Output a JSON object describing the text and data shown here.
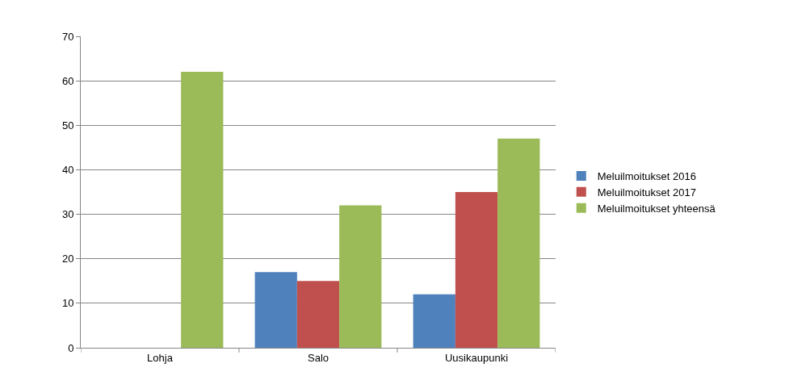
{
  "chart_data": {
    "type": "bar",
    "categories": [
      "Lohja",
      "Salo",
      "Uusikaupunki"
    ],
    "series": [
      {
        "name": "Meluilmoitukset 2016",
        "color": "#4f81bd",
        "values": [
          null,
          17,
          12
        ]
      },
      {
        "name": "Meluilmoitukset 2017",
        "color": "#c0504d",
        "values": [
          null,
          15,
          35
        ]
      },
      {
        "name": "Meluilmoitukset yhteensä",
        "color": "#9bbb59",
        "values": [
          62,
          32,
          47
        ]
      }
    ],
    "ylim": [
      0,
      70
    ],
    "yticks": [
      0,
      10,
      20,
      30,
      40,
      50,
      60,
      70
    ],
    "grid": "y",
    "legend": "right"
  }
}
